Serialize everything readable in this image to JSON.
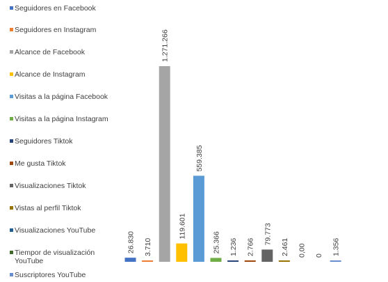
{
  "chart_data": {
    "type": "bar",
    "title": "",
    "xlabel": "",
    "ylabel": "",
    "ylim": [
      0,
      1300000
    ],
    "grid": false,
    "legend_position": "left",
    "series": [
      {
        "name": "Seguidores en Facebook",
        "value": 26830,
        "label": "26.830",
        "color": "#4472c4"
      },
      {
        "name": "Seguidores en Instagram",
        "value": 3710,
        "label": "3.710",
        "color": "#ed7d31"
      },
      {
        "name": "Alcance de Facebook",
        "value": 1271266,
        "label": "1.271.266",
        "color": "#a5a5a5"
      },
      {
        "name": "Alcance de Instagram",
        "value": 119601,
        "label": "119.601",
        "color": "#ffc000"
      },
      {
        "name": "Visitas a la página Facebook",
        "value": 559385,
        "label": "559.385",
        "color": "#5b9bd5"
      },
      {
        "name": "Visitas a la página Instagram",
        "value": 25366,
        "label": "25.366",
        "color": "#70ad47"
      },
      {
        "name": "Seguidores Tiktok",
        "value": 1236,
        "label": "1.236",
        "color": "#264478"
      },
      {
        "name": "Me gusta Tiktok",
        "value": 2766,
        "label": "2.766",
        "color": "#9e480e"
      },
      {
        "name": "Visualizaciones Tiktok",
        "value": 79773,
        "label": "79.773",
        "color": "#636363"
      },
      {
        "name": "Vistas al perfil Tiktok",
        "value": 2461,
        "label": "2.461",
        "color": "#997300"
      },
      {
        "name": "Visualizaciones YouTube",
        "value": 0,
        "label": "0,00",
        "color": "#255e91"
      },
      {
        "name": "Tiempor de visualización YouTube",
        "value": 0,
        "label": "0",
        "color": "#43682b"
      },
      {
        "name": "Suscriptores YouTube",
        "value": 1356,
        "label": "1.356",
        "color": "#698ed0"
      }
    ]
  }
}
